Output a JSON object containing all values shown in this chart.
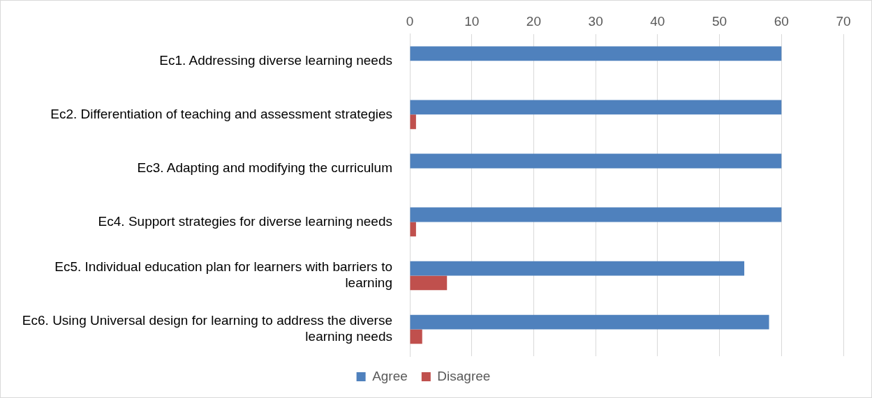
{
  "chart_data": {
    "type": "bar",
    "orientation": "horizontal",
    "categories": [
      "Ec1. Addressing diverse learning needs",
      "Ec2. Differentiation of teaching and assessment strategies",
      "Ec3. Adapting and modifying the curriculum",
      "Ec4. Support strategies for diverse learning needs",
      "Ec5. Individual education plan for learners with barriers to learning",
      "Ec6. Using Universal design for learning to address the diverse learning needs"
    ],
    "series": [
      {
        "name": "Agree",
        "color": "#4f81bd",
        "values": [
          60,
          60,
          60,
          60,
          54,
          58
        ]
      },
      {
        "name": "Disagree",
        "color": "#c0504d",
        "values": [
          0,
          1,
          0,
          1,
          6,
          2
        ]
      }
    ],
    "xlim": [
      0,
      70
    ],
    "xticks": [
      0,
      10,
      20,
      30,
      40,
      50,
      60,
      70
    ],
    "grid": "x",
    "legend": "bottom"
  }
}
